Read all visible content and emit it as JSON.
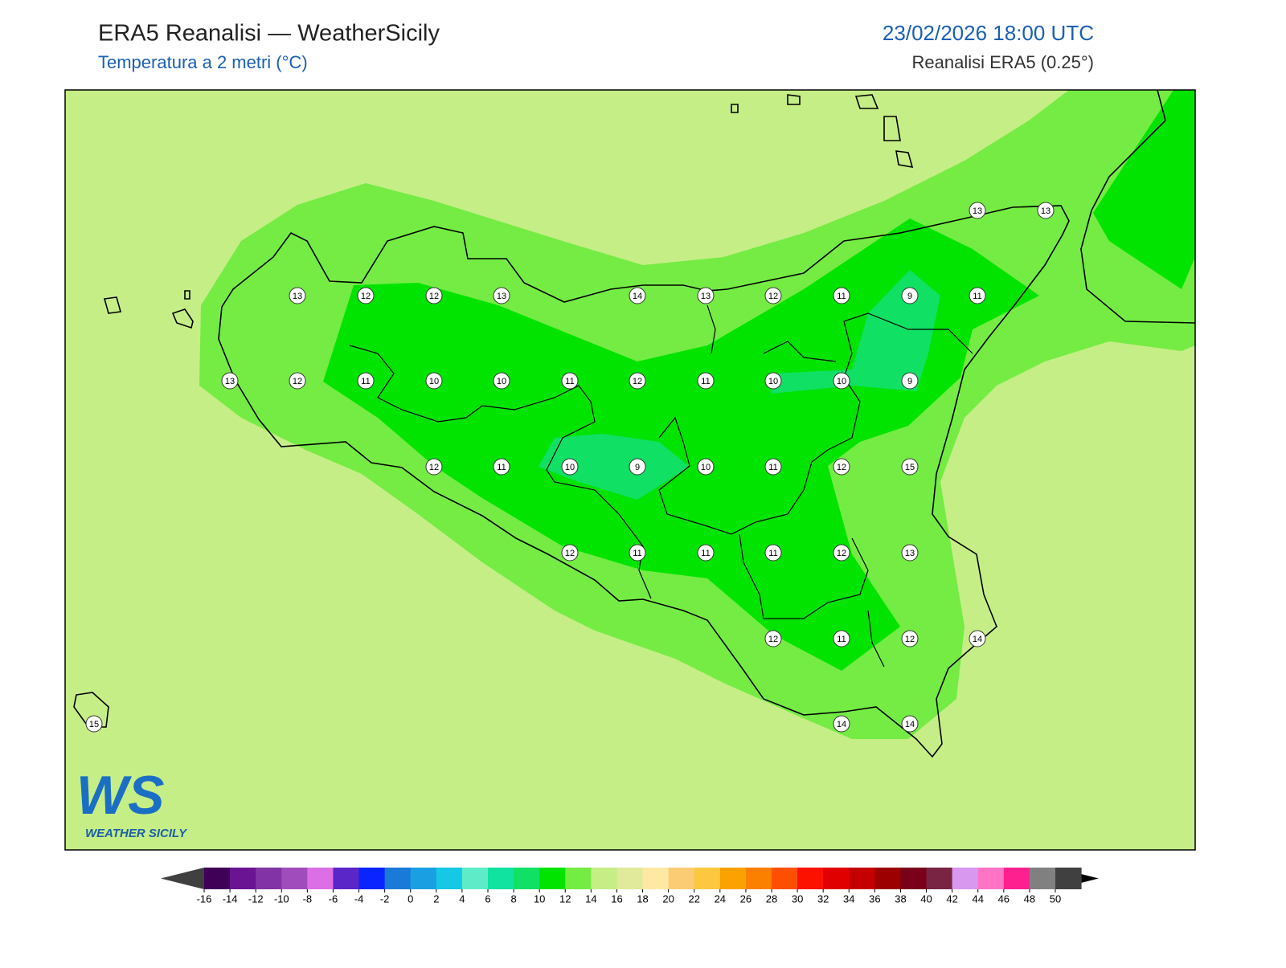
{
  "header": {
    "title": "ERA5 Reanalisi — WeatherSicily",
    "subtitle": "Temperatura a 2 metri (°C)",
    "datetime": "23/02/2026 18:00 UTC",
    "source": "Reanalisi ERA5 (0.25°)"
  },
  "map": {
    "station_values": [
      13,
      13,
      13,
      12,
      12,
      13,
      14,
      13,
      12,
      11,
      9,
      11,
      13,
      12,
      11,
      10,
      10,
      11,
      12,
      11,
      10,
      10,
      9,
      12,
      11,
      10,
      9,
      10,
      11,
      12,
      15,
      12,
      11,
      11,
      11,
      12,
      13,
      12,
      11,
      12,
      14,
      14,
      14,
      15
    ]
  },
  "colorbar": {
    "ticks": [
      -16,
      -14,
      -12,
      -10,
      -8,
      -6,
      -4,
      -2,
      0,
      2,
      4,
      6,
      8,
      10,
      12,
      14,
      16,
      18,
      20,
      22,
      24,
      26,
      28,
      30,
      32,
      34,
      36,
      38,
      40,
      42,
      44,
      46,
      48,
      50
    ],
    "colors": [
      "#3f0058",
      "#6a1494",
      "#8233a6",
      "#a04cbc",
      "#dc6ee6",
      "#5a26c8",
      "#0a24ff",
      "#1a7ad8",
      "#1aa0e2",
      "#14c8e6",
      "#5eecc8",
      "#10e2a0",
      "#10e064",
      "#00e400",
      "#74ec44",
      "#c6ee86",
      "#e1ea9a",
      "#fde8a4",
      "#fccc74",
      "#fcc840",
      "#fca200",
      "#fc8000",
      "#fc5000",
      "#fc1000",
      "#e00000",
      "#c40000",
      "#9c0000",
      "#780018",
      "#7a2444",
      "#d898f0",
      "#ff74c4",
      "#ff2090",
      "#808080",
      "#404040"
    ],
    "extend_colors": [
      "#404040",
      "#000000"
    ]
  },
  "logo": {
    "mark": "WS",
    "name": "WEATHER SICILY"
  }
}
